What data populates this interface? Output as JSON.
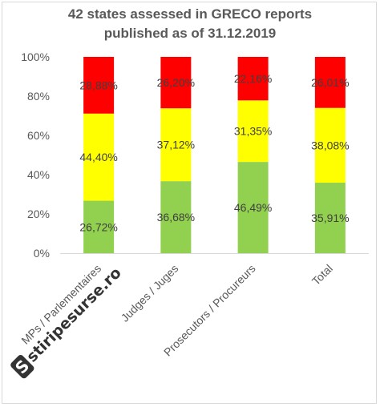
{
  "title_lines": [
    "42 states assessed in GRECO reports",
    "published as of 31.12.2019"
  ],
  "watermark": {
    "logo_letter": "S",
    "text": "stiripesurse.ro"
  },
  "chart_data": {
    "type": "bar",
    "stacked": true,
    "percent_stacked": true,
    "title": "42 states assessed in GRECO reports published as of 31.12.2019",
    "categories": [
      "MPs / Parlementaires",
      "Judges / Juges",
      "Prosecutors / Procureurs",
      "Total"
    ],
    "series": [
      {
        "values": [
          26.72,
          36.68,
          46.49,
          35.91
        ],
        "labels": [
          "26,72%",
          "36,68%",
          "46,49%",
          "35,91%"
        ],
        "color": "#92d050"
      },
      {
        "values": [
          44.4,
          37.12,
          31.35,
          38.08
        ],
        "labels": [
          "44,40%",
          "37,12%",
          "31,35%",
          "38,08%"
        ],
        "color": "#ffff00"
      },
      {
        "values": [
          28.88,
          26.2,
          22.16,
          26.01
        ],
        "labels": [
          "28,88%",
          "26,20%",
          "22,16%",
          "26,01%"
        ],
        "color": "#ff0000"
      }
    ],
    "ylim": [
      0,
      100
    ],
    "yticks": [
      0,
      20,
      40,
      60,
      80,
      100
    ],
    "ytick_labels": [
      "0%",
      "20%",
      "40%",
      "60%",
      "80%",
      "100%"
    ],
    "grid": false,
    "legend": "none"
  }
}
